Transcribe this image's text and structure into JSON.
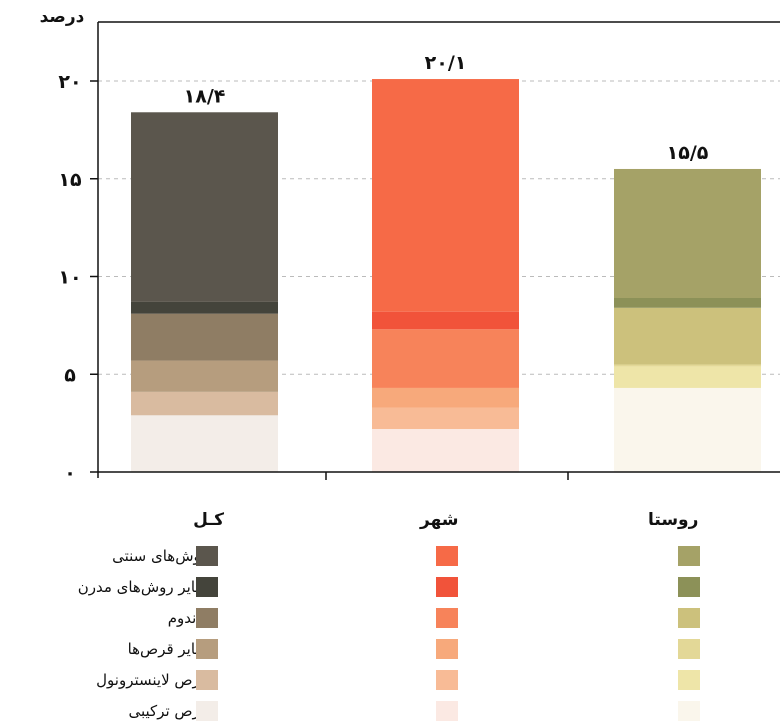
{
  "chart_data": {
    "type": "bar",
    "stacked": true,
    "ylabel": "درصد",
    "ylim": [
      0,
      20
    ],
    "yticks": [
      "۰",
      "۵",
      "۱۰",
      "۱۵",
      "۲۰"
    ],
    "grid": true,
    "categories": [
      "کـل",
      "شهر",
      "روستا"
    ],
    "totals": [
      18.4,
      20.1,
      15.5
    ],
    "total_labels": [
      "۱۸/۴",
      "۲۰/۱",
      "۱۵/۵"
    ],
    "series": [
      {
        "name": "قرص ترکیبی",
        "values": [
          2.9,
          2.2,
          4.3
        ]
      },
      {
        "name": "قرص لاینسترونول",
        "values": [
          1.2,
          1.1,
          1.1
        ]
      },
      {
        "name": "سایر قرص‌ها",
        "values": [
          1.6,
          1.0,
          0.1
        ]
      },
      {
        "name": "کاندوم",
        "values": [
          2.4,
          3.0,
          2.9
        ]
      },
      {
        "name": "سایر روش‌های مدرن",
        "values": [
          0.6,
          0.9,
          0.5
        ]
      },
      {
        "name": "روش‌های سنتی",
        "values": [
          9.7,
          11.9,
          6.6
        ]
      }
    ],
    "colors": [
      [
        "#f3ede8",
        "#d9bba0",
        "#b69d7e",
        "#8f7d64",
        "#44443b",
        "#5b564d"
      ],
      [
        "#fbe9e3",
        "#f8bb96",
        "#f7a97b",
        "#f7835a",
        "#f1533a",
        "#f66a47"
      ],
      [
        "#faf6ec",
        "#eee5a8",
        "#e3d897",
        "#ccc17c",
        "#8c9158",
        "#a5a267"
      ]
    ],
    "legend_colors": [
      [
        "#5b564d",
        "#44443b",
        "#8f7d64",
        "#b69d7e",
        "#d9bba0",
        "#f3ede8"
      ],
      [
        "#f66a47",
        "#f1533a",
        "#f7835a",
        "#f7a97b",
        "#f8bb96",
        "#fbe9e3"
      ],
      [
        "#a5a267",
        "#8c9158",
        "#ccc17c",
        "#e3d897",
        "#eee5a8",
        "#faf6ec"
      ]
    ]
  }
}
